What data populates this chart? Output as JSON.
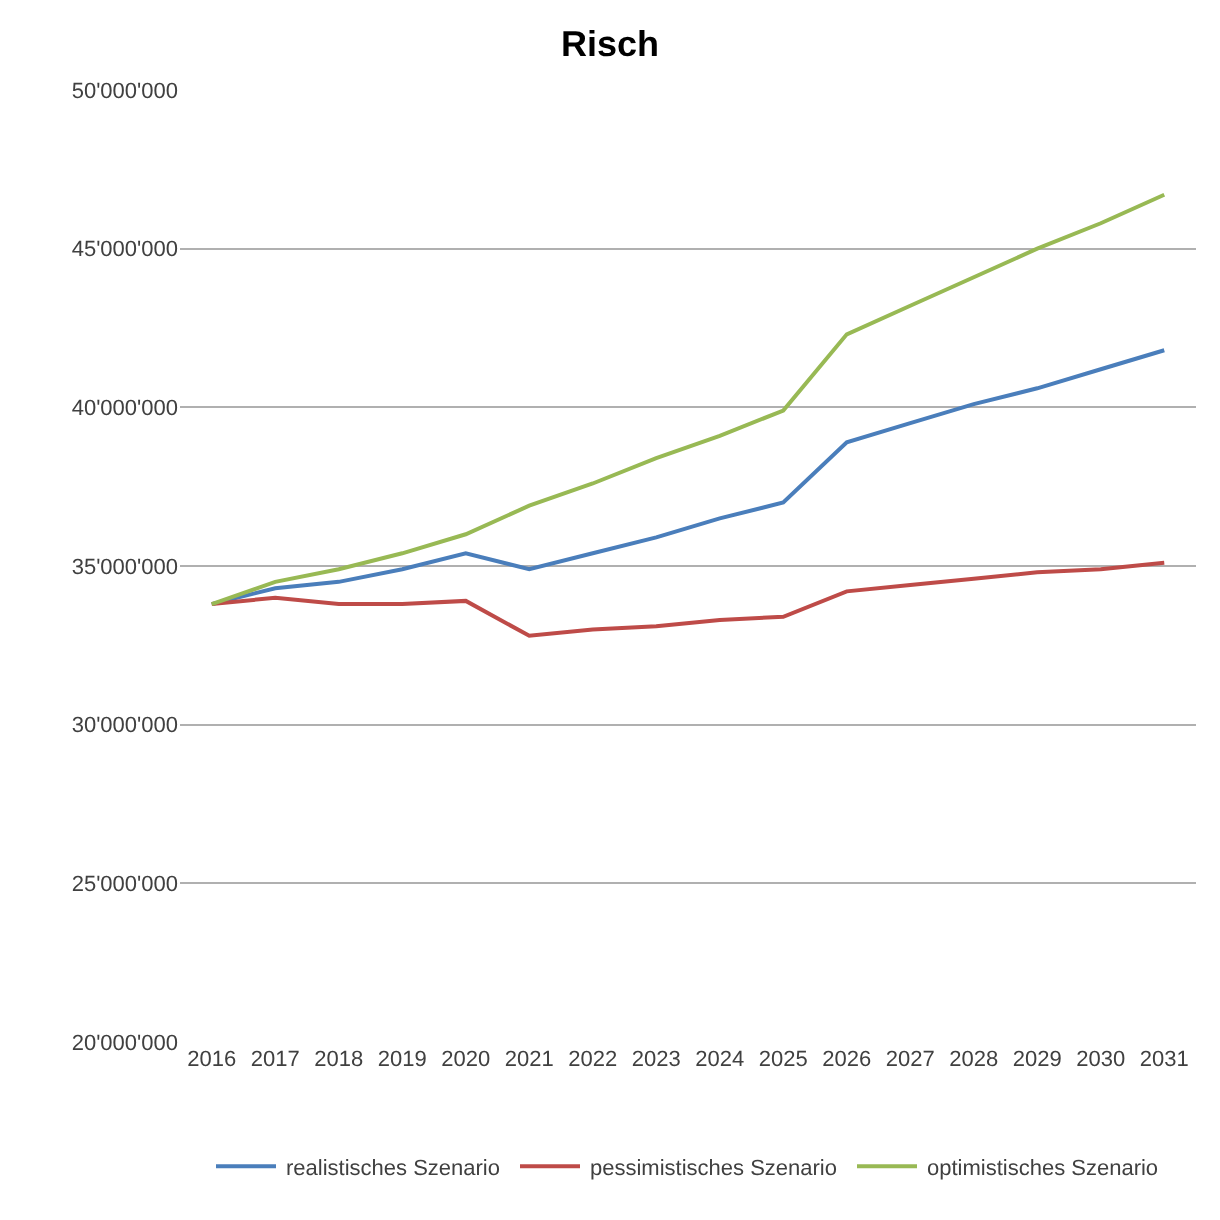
{
  "chart_data": {
    "type": "line",
    "title": "Risch",
    "categories": [
      "2016",
      "2017",
      "2018",
      "2019",
      "2020",
      "2021",
      "2022",
      "2023",
      "2024",
      "2025",
      "2026",
      "2027",
      "2028",
      "2029",
      "2030",
      "2031"
    ],
    "series": [
      {
        "name": "realistisches Szenario",
        "color": "#4a7ebb",
        "values": [
          33800000,
          34300000,
          34500000,
          34900000,
          35400000,
          34900000,
          35400000,
          35900000,
          36500000,
          37000000,
          38900000,
          39500000,
          40100000,
          40600000,
          41200000,
          41800000
        ]
      },
      {
        "name": "pessimistisches Szenario",
        "color": "#be4b48",
        "values": [
          33800000,
          34000000,
          33800000,
          33800000,
          33900000,
          32800000,
          33000000,
          33100000,
          33300000,
          33400000,
          34200000,
          34400000,
          34600000,
          34800000,
          34900000,
          35100000
        ]
      },
      {
        "name": "optimistisches Szenario",
        "color": "#98b954",
        "values": [
          33800000,
          34500000,
          34900000,
          35400000,
          36000000,
          36900000,
          37600000,
          38400000,
          39100000,
          39900000,
          42300000,
          43200000,
          44100000,
          45000000,
          45800000,
          46700000
        ]
      }
    ],
    "ylim": [
      20000000,
      50000000
    ],
    "yticks": [
      {
        "value": 20000000,
        "label": "20'000'000"
      },
      {
        "value": 25000000,
        "label": "25'000'000"
      },
      {
        "value": 30000000,
        "label": "30'000'000"
      },
      {
        "value": 35000000,
        "label": "35'000'000"
      },
      {
        "value": 40000000,
        "label": "40'000'000"
      },
      {
        "value": 45000000,
        "label": "45'000'000"
      },
      {
        "value": 50000000,
        "label": "50'000'000"
      }
    ],
    "grid": "y",
    "legend": "bottom",
    "marker": "none",
    "line_style": "solid"
  }
}
